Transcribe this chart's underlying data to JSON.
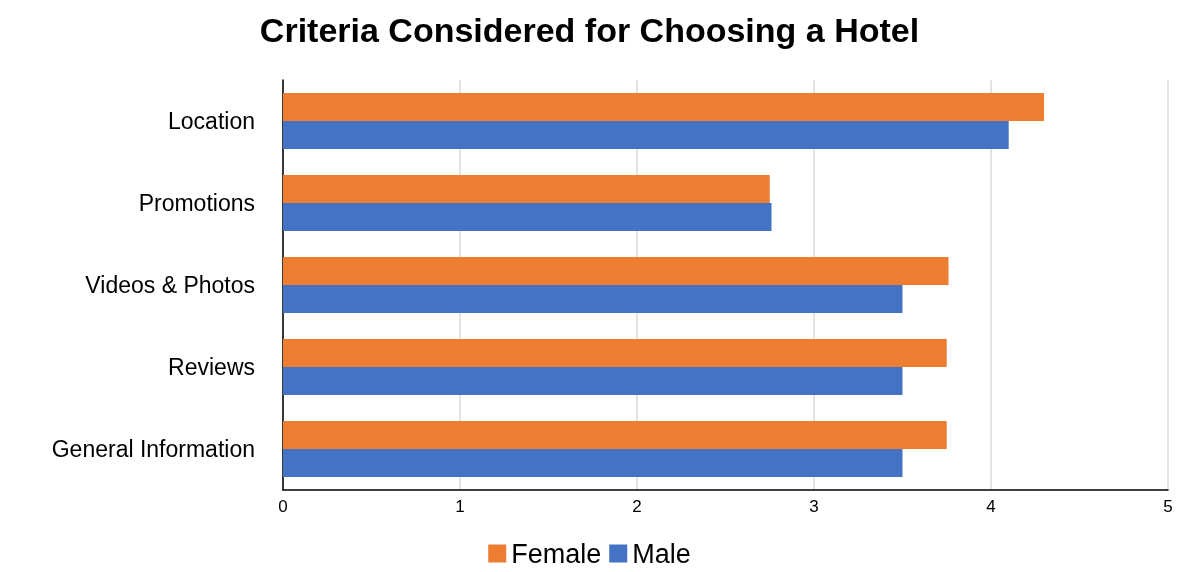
{
  "chart_data": {
    "type": "bar",
    "title": "Criteria Considered for Choosing a Hotel",
    "orientation": "horizontal",
    "categories": [
      "Location",
      "Promotions",
      "Videos & Photos",
      "Reviews",
      "General Information"
    ],
    "series": [
      {
        "name": "Female",
        "color": "#ed7d31",
        "values": [
          4.3,
          2.75,
          3.76,
          3.75,
          3.75
        ]
      },
      {
        "name": "Male",
        "color": "#4472c4",
        "values": [
          4.1,
          2.76,
          3.5,
          3.5,
          3.5
        ]
      }
    ],
    "xlim": [
      0,
      5
    ],
    "xticks": [
      0,
      1,
      2,
      3,
      4,
      5
    ],
    "grid": "x",
    "legend": "bottom"
  }
}
